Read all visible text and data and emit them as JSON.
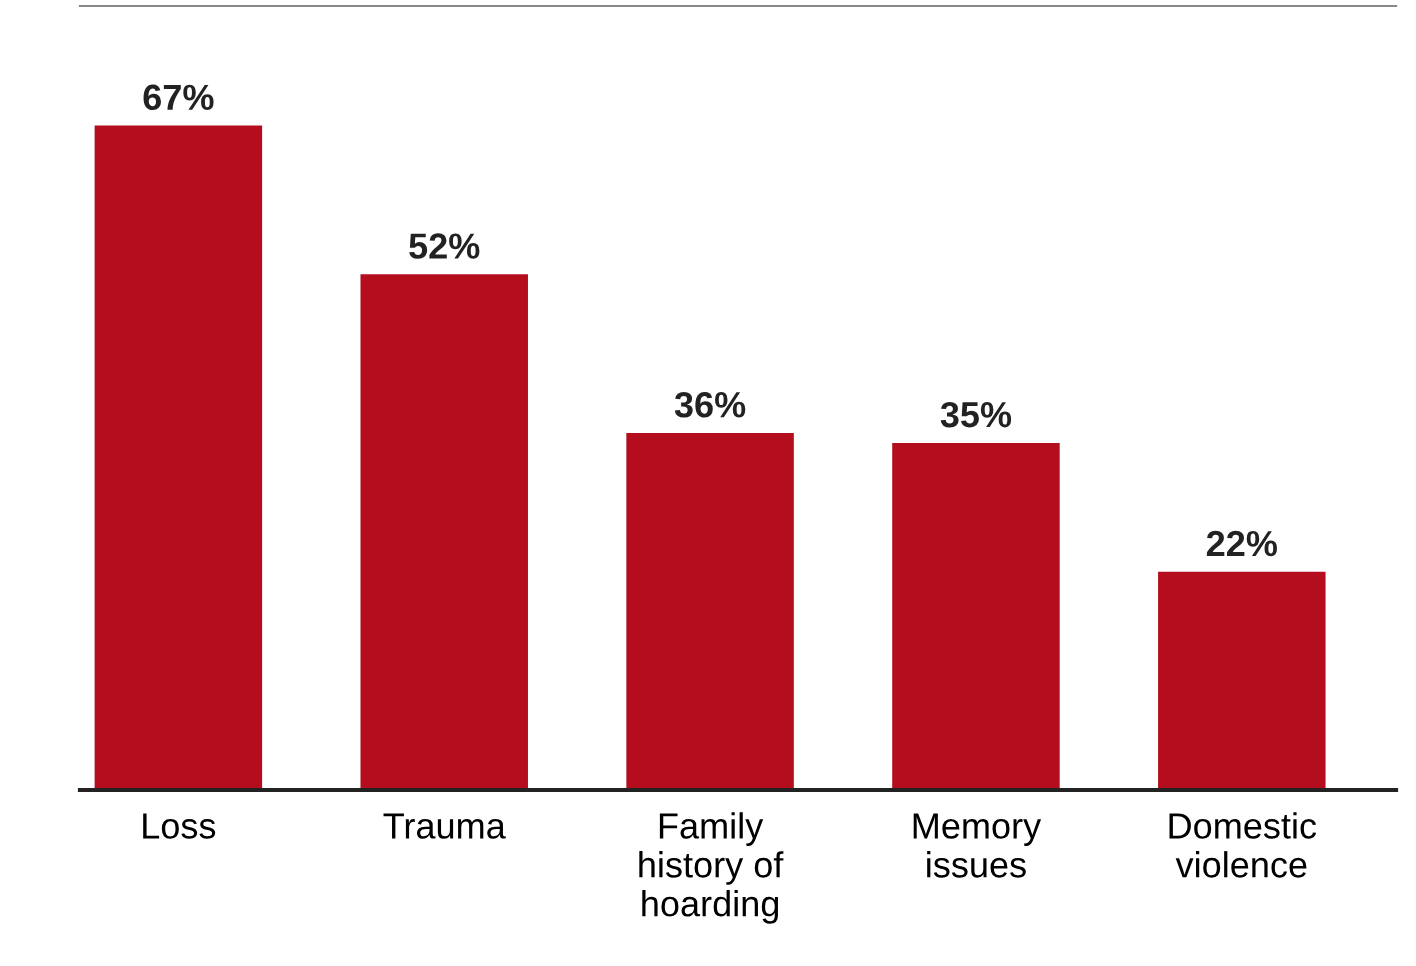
{
  "chart_data": {
    "type": "bar",
    "categories": [
      "Loss",
      "Trauma",
      "Family\nhistory of\nhoarding",
      "Memory\nissues",
      "Domestic\nviolence"
    ],
    "values": [
      67,
      52,
      36,
      35,
      22
    ],
    "color": "#b30d1e",
    "value_labels": [
      "67%",
      "52%",
      "36%",
      "35%",
      "22%"
    ]
  }
}
